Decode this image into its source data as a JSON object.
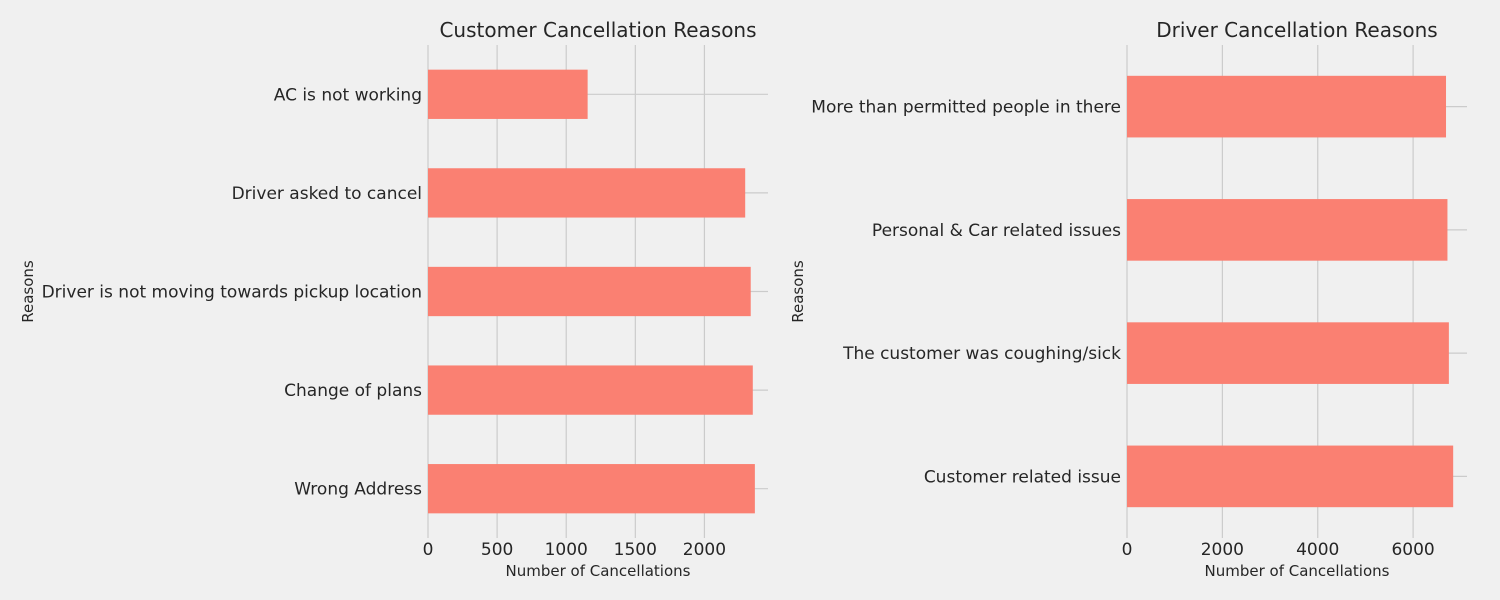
{
  "chart_data": [
    {
      "type": "bar",
      "orientation": "horizontal",
      "title": "Customer Cancellation Reasons",
      "xlabel": "Number of Cancellations",
      "ylabel": "Reasons",
      "categories": [
        "AC is not working",
        "Driver asked to cancel",
        "Driver is not moving towards pickup location",
        "Change of plans",
        "Wrong Address"
      ],
      "values": [
        1155,
        2295,
        2335,
        2350,
        2365
      ],
      "xlim": [
        0,
        2460
      ],
      "xticks": [
        0,
        500,
        1000,
        1500,
        2000
      ],
      "grid": true,
      "color": "#fa8072"
    },
    {
      "type": "bar",
      "orientation": "horizontal",
      "title": "Driver Cancellation Reasons",
      "xlabel": "Number of Cancellations",
      "ylabel": "Reasons",
      "categories": [
        "More than permitted people in there",
        "Personal & Car related issues",
        "The customer was coughing/sick",
        "Customer related issue"
      ],
      "values": [
        6690,
        6720,
        6750,
        6840
      ],
      "xlim": [
        0,
        7130
      ],
      "xticks": [
        0,
        2000,
        4000,
        6000
      ],
      "grid": true,
      "color": "#fa8072"
    }
  ]
}
